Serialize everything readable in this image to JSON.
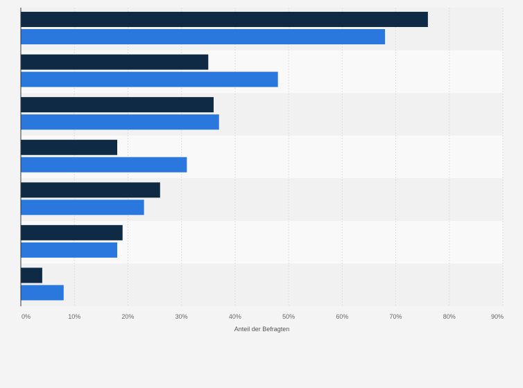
{
  "chart_data": {
    "type": "bar",
    "orientation": "horizontal",
    "categories": [
      "",
      "",
      "",
      "",
      "",
      "",
      ""
    ],
    "series": [
      {
        "values": [
          76,
          35,
          36,
          18,
          26,
          19,
          4
        ],
        "color": "#0f2a44"
      },
      {
        "values": [
          68,
          48,
          37,
          31,
          23,
          18,
          8
        ],
        "color": "#2a78de"
      }
    ],
    "x_axis": {
      "label": "Anteil der Befragten",
      "range": [
        0,
        90
      ],
      "ticks": [
        "0%",
        "10%",
        "20%",
        "30%",
        "40%",
        "50%",
        "60%",
        "70%",
        "80%",
        "90%"
      ]
    },
    "grid": true,
    "legend": "none",
    "colors": {
      "background": "#f4f4f4",
      "band_dark": "#f1f1f1",
      "band_light": "#f9f9f9",
      "grid": "#dddddd",
      "axis": "#333333"
    }
  }
}
